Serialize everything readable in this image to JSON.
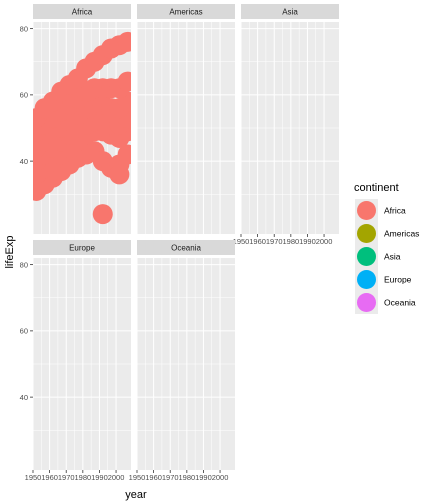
{
  "chart_data": {
    "type": "scatter",
    "facet_by": "continent",
    "x_label": "year",
    "y_label": "lifeExp",
    "xlim": [
      1950,
      2009
    ],
    "ylim": [
      18,
      82
    ],
    "x_ticks": [
      1950,
      1960,
      1970,
      1980,
      1990,
      2000
    ],
    "y_ticks": [
      40,
      60,
      80
    ],
    "panels": [
      "Africa",
      "Americas",
      "Asia",
      "Europe",
      "Oceania"
    ],
    "colors": {
      "Africa": "#F8766D",
      "Americas": "#A3A500",
      "Asia": "#00BF7D",
      "Europe": "#00B0F6",
      "Oceania": "#E76BF3"
    },
    "series": [
      {
        "name": "Africa",
        "x": [
          1952,
          1957,
          1962,
          1967,
          1972,
          1977,
          1982,
          1987,
          1992,
          1997,
          2002,
          2007,
          1952,
          1957,
          1962,
          1967,
          1972,
          1977,
          1982,
          1987,
          1992,
          1997,
          2002,
          2007,
          1952,
          1957,
          1962,
          1967,
          1972,
          1977,
          1982,
          1987,
          1992,
          1997,
          2002,
          2007,
          1952,
          1957,
          1962,
          1967,
          1972,
          1977,
          1982,
          1987,
          1992,
          1997,
          2002,
          2007,
          1952,
          1957,
          1962,
          1967,
          1972,
          1977,
          1982,
          1987,
          1992,
          1997,
          2002,
          2007,
          1952,
          1957,
          1962,
          1967,
          1972,
          1977,
          1982,
          1987,
          1992,
          1997,
          2002,
          2007,
          1992,
          2002
        ],
        "y": [
          31,
          33,
          35,
          37,
          39,
          41,
          42,
          43,
          40,
          38,
          39,
          42,
          36,
          38,
          40,
          42,
          44,
          46,
          48,
          49,
          49,
          48,
          47,
          49,
          40,
          42,
          44,
          46,
          48,
          50,
          51,
          52,
          52,
          51,
          51,
          53,
          44,
          46,
          48,
          50,
          52,
          54,
          56,
          57,
          57,
          56,
          56,
          58,
          49,
          51,
          53,
          55,
          57,
          59,
          61,
          62,
          62,
          62,
          62,
          64,
          53,
          56,
          58,
          61,
          63,
          65,
          68,
          70,
          72,
          74,
          75,
          76,
          24,
          36
        ]
      },
      {
        "name": "Americas",
        "x": [],
        "y": []
      },
      {
        "name": "Asia",
        "x": [],
        "y": []
      },
      {
        "name": "Europe",
        "x": [],
        "y": []
      },
      {
        "name": "Oceania",
        "x": [],
        "y": []
      }
    ],
    "legend": {
      "title": "continent",
      "position": "right",
      "items": [
        "Africa",
        "Americas",
        "Asia",
        "Europe",
        "Oceania"
      ]
    }
  }
}
